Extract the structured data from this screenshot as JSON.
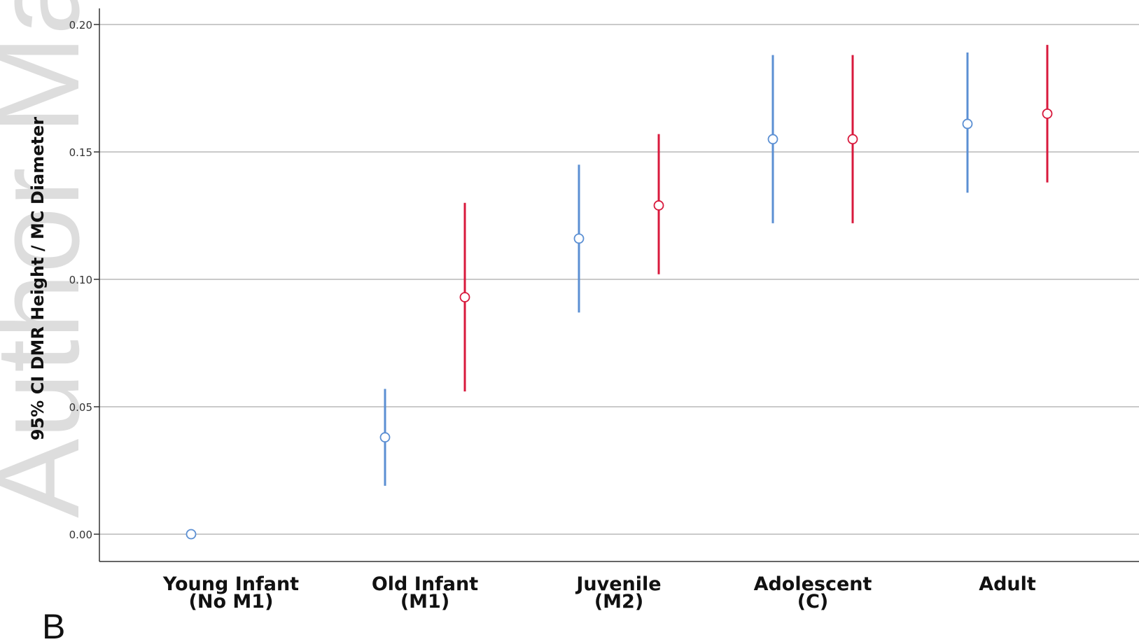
{
  "panel_label": "B",
  "watermark_text": "Author Ma",
  "colors": {
    "series_blue": "#5b8fd3",
    "series_red": "#d8193c",
    "gridline": "#b8b8b8",
    "axis": "#333333"
  },
  "chart_data": {
    "type": "errorbar",
    "title": "",
    "ylabel": "95% CI DMR Height / MC Diameter",
    "xlabel": "",
    "ylim": [
      0.0,
      0.2
    ],
    "yticks": [
      "0.00",
      "0.05",
      "0.10",
      "0.15",
      "0.20"
    ],
    "grid": true,
    "categories": [
      {
        "line1": "Young Infant",
        "line2": "(No M1)"
      },
      {
        "line1": "Old Infant",
        "line2": "(M1)"
      },
      {
        "line1": "Juvenile",
        "line2": "(M2)"
      },
      {
        "line1": "Adolescent",
        "line2": "(C)"
      },
      {
        "line1": "Adult",
        "line2": ""
      }
    ],
    "series": [
      {
        "color": "#5b8fd3",
        "points": [
          {
            "category": 0,
            "mean": 0.0,
            "lower": 0.0,
            "upper": 0.0
          },
          {
            "category": 1,
            "mean": 0.038,
            "lower": 0.019,
            "upper": 0.057
          },
          {
            "category": 2,
            "mean": 0.116,
            "lower": 0.087,
            "upper": 0.145
          },
          {
            "category": 3,
            "mean": 0.155,
            "lower": 0.122,
            "upper": 0.188
          },
          {
            "category": 4,
            "mean": 0.161,
            "lower": 0.134,
            "upper": 0.189
          }
        ]
      },
      {
        "color": "#d8193c",
        "points": [
          {
            "category": 1,
            "mean": 0.093,
            "lower": 0.056,
            "upper": 0.13
          },
          {
            "category": 2,
            "mean": 0.129,
            "lower": 0.102,
            "upper": 0.157
          },
          {
            "category": 3,
            "mean": 0.155,
            "lower": 0.122,
            "upper": 0.188
          },
          {
            "category": 4,
            "mean": 0.165,
            "lower": 0.138,
            "upper": 0.192
          }
        ]
      }
    ]
  }
}
